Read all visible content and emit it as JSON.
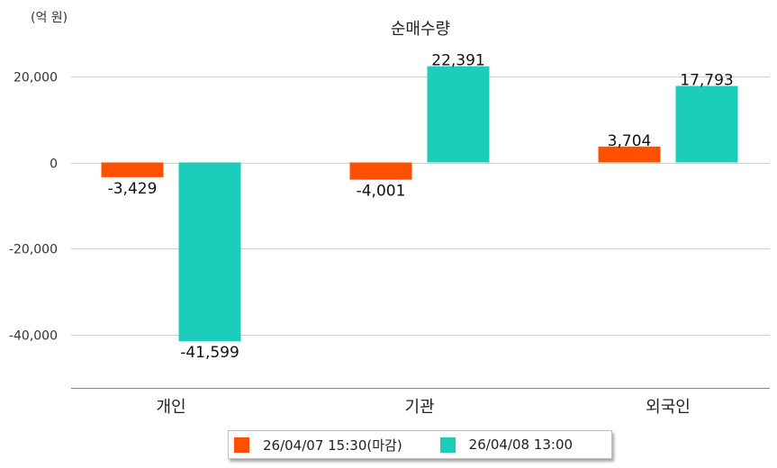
{
  "unit_label": "(억 원)",
  "chart_data": {
    "type": "bar",
    "title": "순매수량",
    "xlabel": "",
    "ylabel": "",
    "ylim": [
      -52000,
      27000
    ],
    "yticks": [
      20000,
      0,
      -20000,
      -40000
    ],
    "ytick_labels": [
      "20,000",
      "0",
      "-20,000",
      "-40,000"
    ],
    "categories": [
      "개인",
      "기관",
      "외국인"
    ],
    "series": [
      {
        "name": "26/04/07 15:30(마감)",
        "color": "#ff5000",
        "values": [
          -3429,
          -4001,
          3704
        ],
        "labels": [
          "-3,429",
          "-4,001",
          "3,704"
        ]
      },
      {
        "name": "26/04/08 13:00",
        "color": "#1dcdbb",
        "values": [
          -41599,
          22391,
          17793
        ],
        "labels": [
          "-41,599",
          "22,391",
          "17,793"
        ]
      }
    ],
    "grid": true,
    "legend_position": "bottom-center"
  }
}
